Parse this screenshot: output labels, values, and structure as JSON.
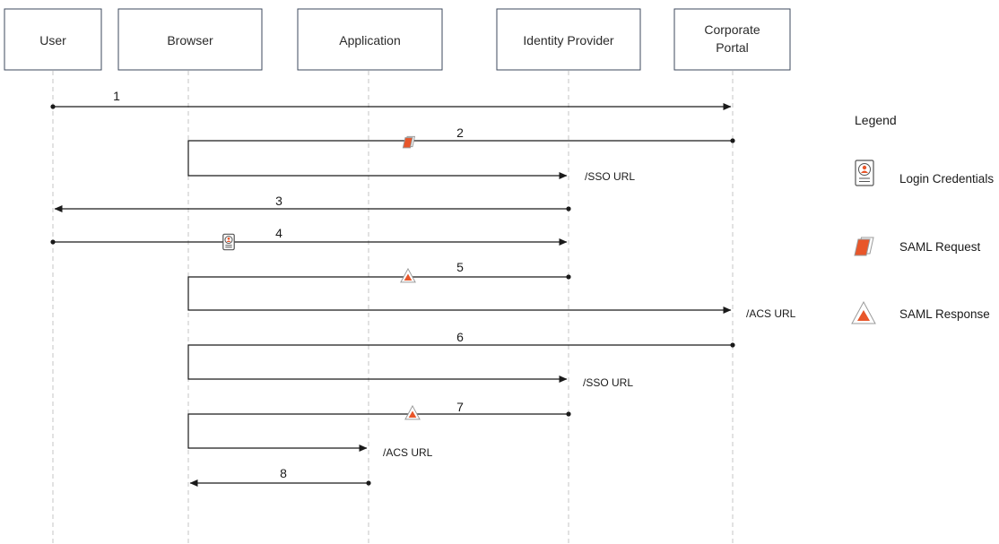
{
  "actors": [
    {
      "id": "user",
      "label": [
        "User"
      ]
    },
    {
      "id": "browser",
      "label": [
        "Browser"
      ]
    },
    {
      "id": "application",
      "label": [
        "Application"
      ]
    },
    {
      "id": "idp",
      "label": [
        "Identity Provider"
      ]
    },
    {
      "id": "portal",
      "label": [
        "Corporate",
        "Portal"
      ]
    }
  ],
  "messages": [
    {
      "num": "1",
      "from": "user",
      "to": "portal"
    },
    {
      "num": "2",
      "from": "portal",
      "to": "browser",
      "redirect_to": "idp",
      "url": "/SSO URL",
      "icon": "saml-request"
    },
    {
      "num": "3",
      "from": "idp",
      "to": "user"
    },
    {
      "num": "4",
      "from": "user",
      "to": "idp",
      "icon": "login-credentials"
    },
    {
      "num": "5",
      "from": "idp",
      "to": "browser",
      "redirect_to": "portal",
      "url": "/ACS URL",
      "icon": "saml-response"
    },
    {
      "num": "6",
      "from": "portal",
      "to": "browser",
      "redirect_to": "idp",
      "url": "/SSO URL"
    },
    {
      "num": "7",
      "from": "idp",
      "to": "browser",
      "redirect_to": "application",
      "url": "/ACS URL",
      "icon": "saml-response"
    },
    {
      "num": "8",
      "from": "application",
      "to": "browser",
      "bidirectional": true
    }
  ],
  "legend": {
    "title": "Legend",
    "items": [
      {
        "icon": "login-credentials",
        "label": "Login Credentials"
      },
      {
        "icon": "saml-request",
        "label": "SAML Request"
      },
      {
        "icon": "saml-response",
        "label": "SAML Response"
      }
    ]
  },
  "colors": {
    "accent": "#e8562a",
    "line": "#1a1a1a",
    "box_border": "#3e4a5e",
    "lifeline": "#c4c4c4"
  }
}
